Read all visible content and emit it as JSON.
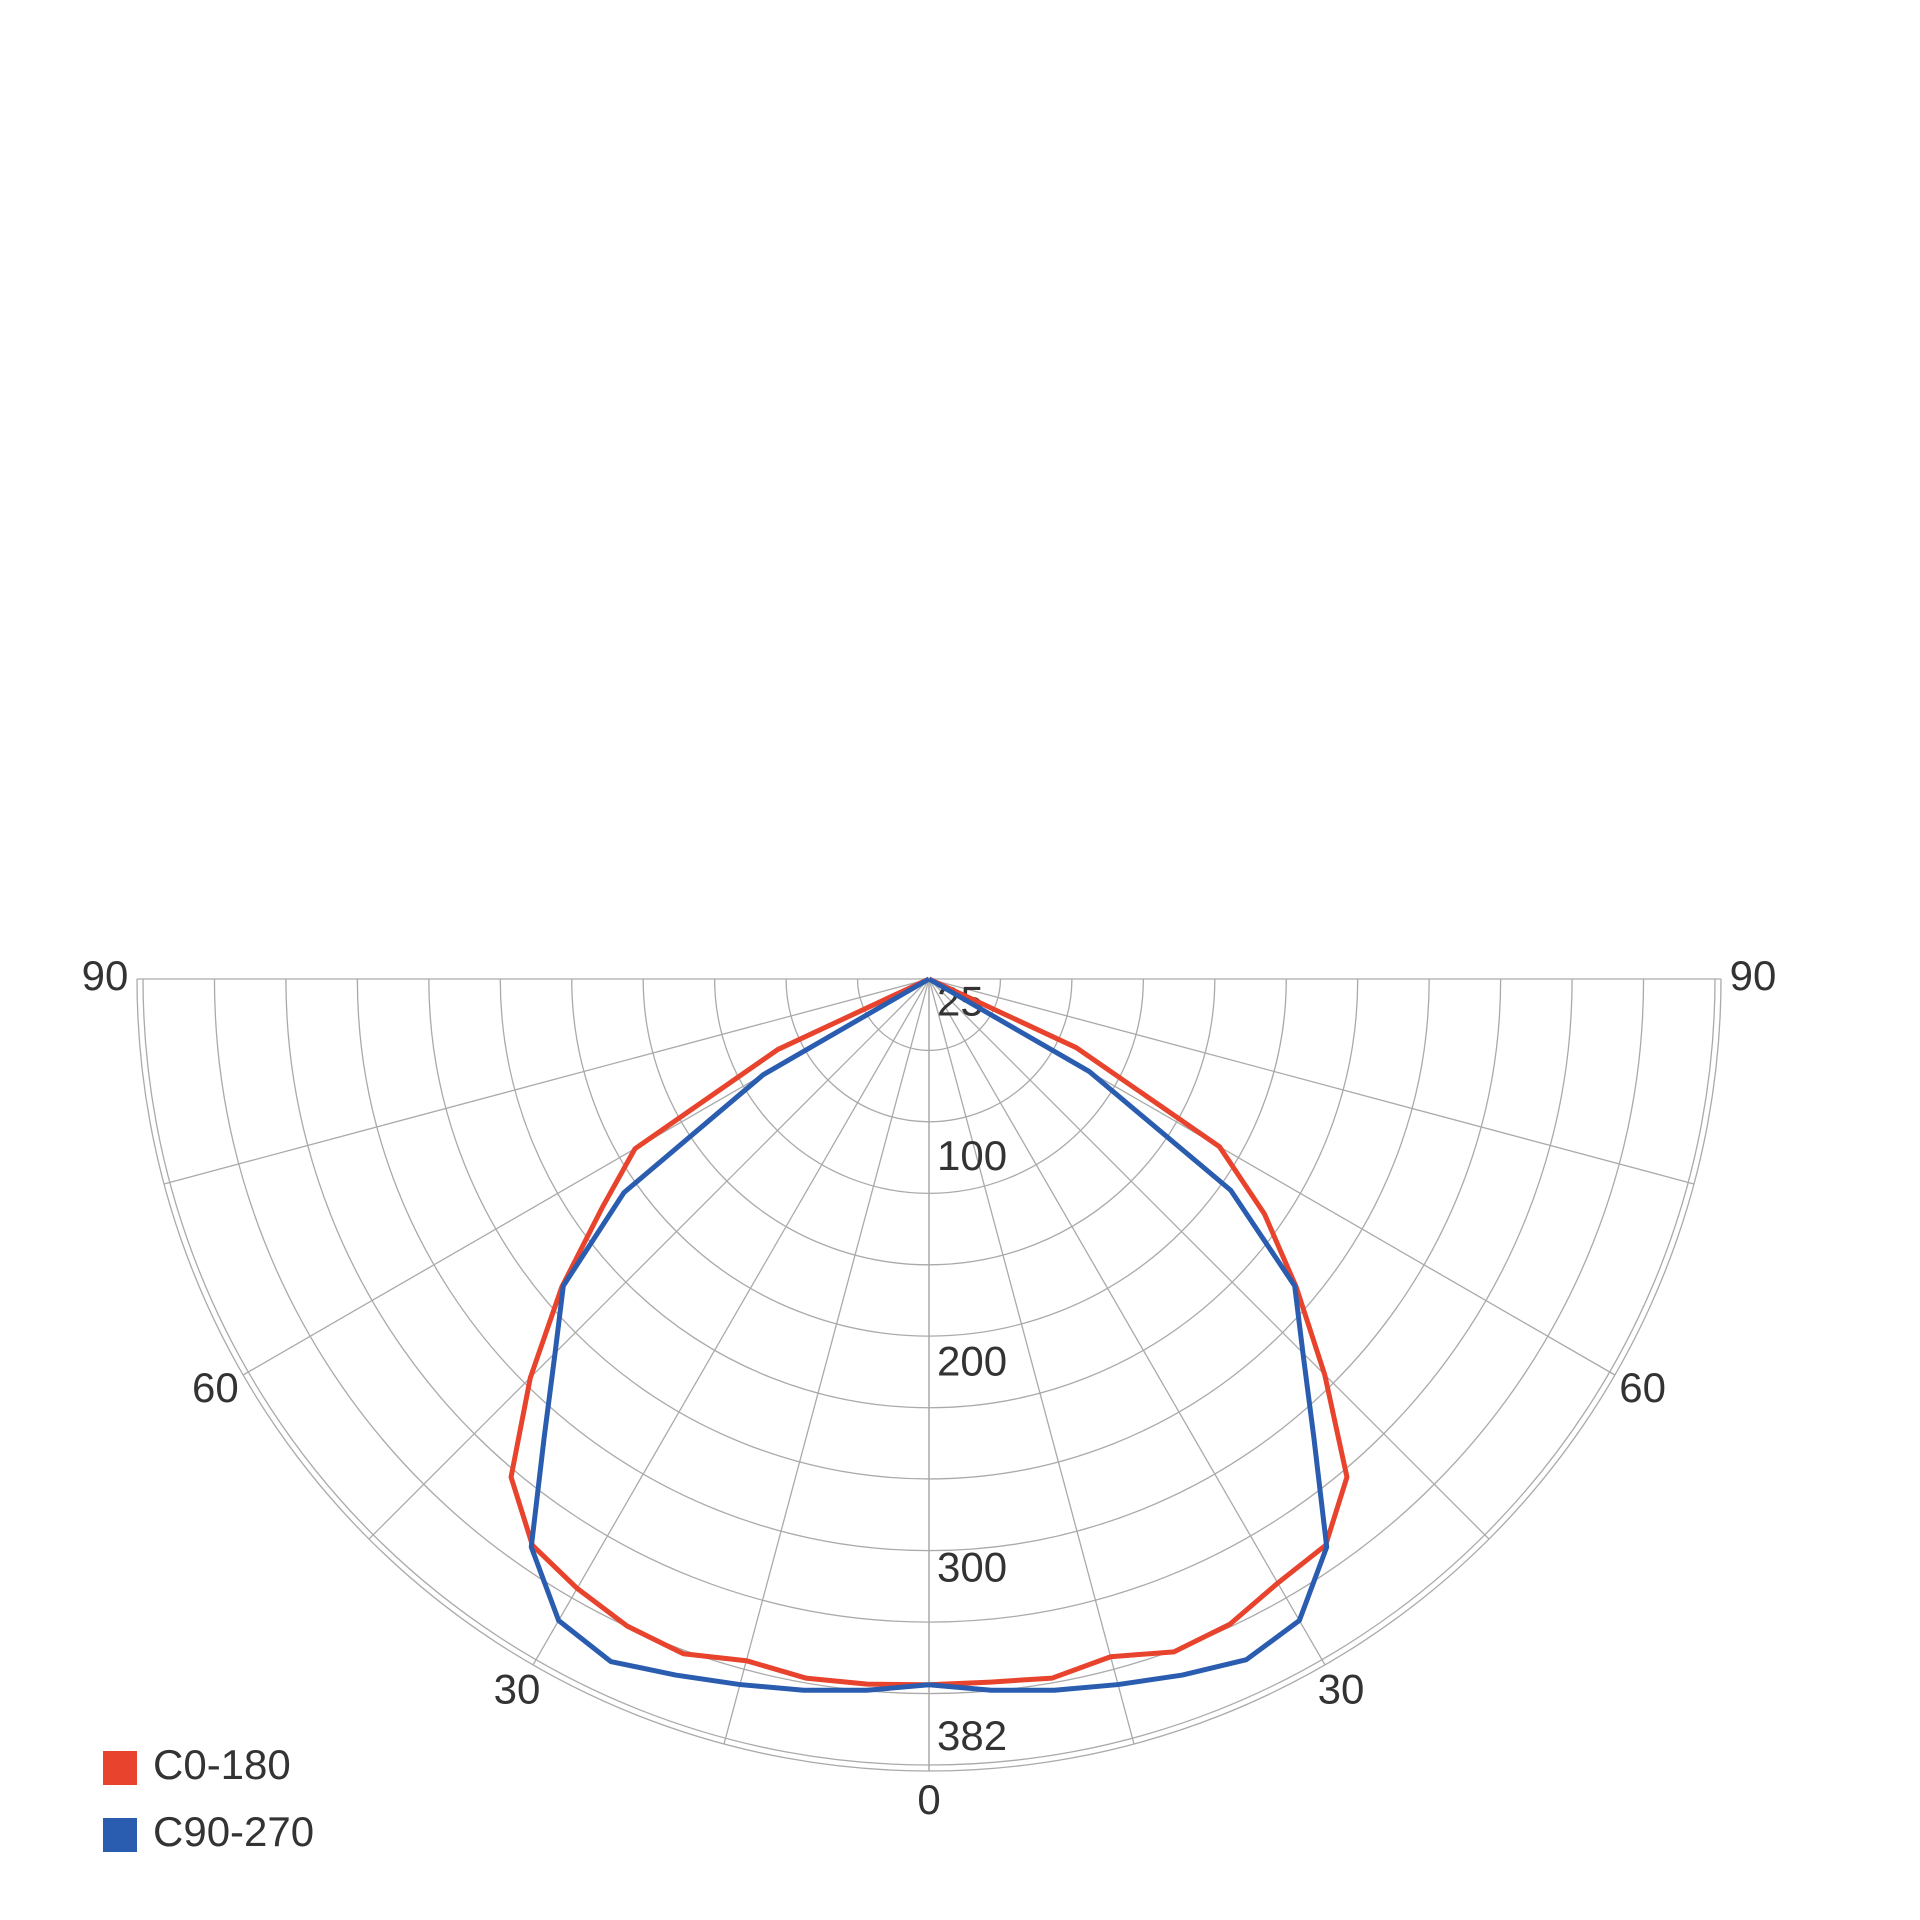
{
  "chart_data": {
    "type": "polar",
    "angles": [
      0,
      5,
      10,
      15,
      20,
      25,
      30,
      35,
      40,
      45,
      50,
      55,
      60,
      65,
      70,
      75,
      80,
      85,
      90
    ],
    "rlim": [
      0,
      382
    ],
    "rticks": [
      25,
      100,
      200,
      300,
      382
    ],
    "angle_ticks": [
      0,
      30,
      60,
      90
    ],
    "series": [
      {
        "name": "C0-180",
        "color": "#e8432c",
        "values_left": [
          343,
          344,
          345,
          343,
          349,
          347,
          342,
          336,
          316,
          274,
          233,
          194,
          165,
          81,
          0,
          0,
          0,
          0,
          0
        ],
        "values_right": [
          343,
          343,
          345,
          341,
          348,
          346,
          339,
          336,
          316,
          272,
          233,
          199,
          163,
          79,
          0,
          0,
          0,
          0,
          0
        ]
      },
      {
        "name": "C90-270",
        "color": "#2a5db0",
        "values_left": [
          343,
          347,
          351,
          355,
          360,
          366,
          360,
          337,
          291,
          257,
          232,
          181,
          93,
          0,
          0,
          0,
          0,
          0,
          0
        ],
        "values_right": [
          343,
          347,
          351,
          355,
          360,
          365,
          360,
          337,
          291,
          257,
          232,
          179,
          90,
          0,
          0,
          0,
          0,
          0,
          0
        ]
      }
    ]
  }
}
